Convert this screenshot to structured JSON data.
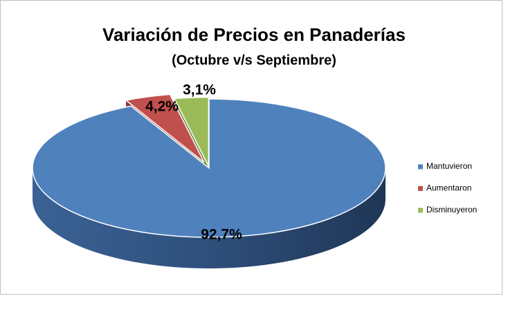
{
  "chart_data": {
    "type": "pie",
    "title": "Variación de Precios en Panaderías",
    "subtitle": "(Octubre v/s Septiembre)",
    "categories": [
      "Mantuvieron",
      "Aumentaron",
      "Disminuyeron"
    ],
    "values": [
      92.7,
      4.2,
      3.1
    ],
    "value_labels": [
      "92,7%",
      "4,2%",
      "3,1%"
    ],
    "colors": [
      "#4f81bd",
      "#c0504d",
      "#9bbb59"
    ],
    "legend": "right"
  }
}
